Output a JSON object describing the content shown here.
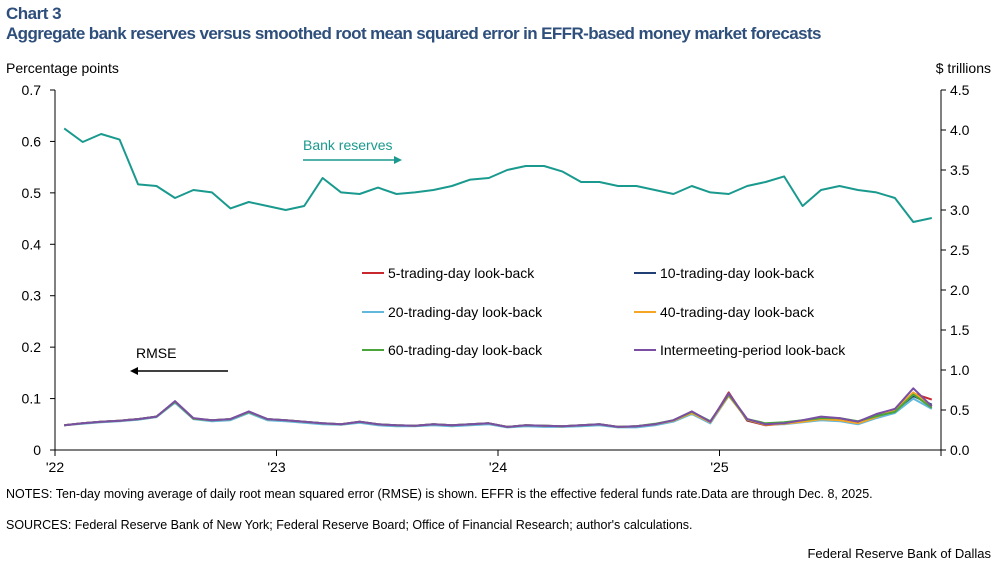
{
  "header": {
    "kicker": "Chart 3",
    "title": "Aggregate bank reserves versus smoothed root mean squared error in EFFR-based money market forecasts"
  },
  "notes": "NOTES: Ten-day moving average of daily root mean squared error (RMSE) is shown. EFFR is the effective federal funds rate.Data are through Dec. 8, 2025.",
  "sources": "SOURCES: Federal Reserve Bank of New York; Federal Reserve Board; Office of Financial Research; author's calculations.",
  "credit": "Federal Reserve Bank of Dallas",
  "chart_data": {
    "type": "line",
    "left_axis": {
      "label": "Percentage points",
      "ylim": [
        0,
        0.7
      ],
      "ticks": [
        "0",
        "0.1",
        "0.2",
        "0.3",
        "0.4",
        "0.5",
        "0.6",
        "0.7"
      ]
    },
    "right_axis": {
      "label": "$ trillions",
      "ylim": [
        0,
        4.5
      ],
      "ticks": [
        "0.0",
        "0.5",
        "1.0",
        "1.5",
        "2.0",
        "2.5",
        "3.0",
        "3.5",
        "4.0",
        "4.5"
      ]
    },
    "x_ticks": [
      "'22",
      "'23",
      "'24",
      "'25"
    ],
    "x_range": [
      "2022-01",
      "2026-01"
    ],
    "annotations": {
      "reserves": "Bank reserves",
      "rmse": "RMSE"
    },
    "months": [
      "2022-01",
      "2022-02",
      "2022-03",
      "2022-04",
      "2022-05",
      "2022-06",
      "2022-07",
      "2022-08",
      "2022-09",
      "2022-10",
      "2022-11",
      "2022-12",
      "2023-01",
      "2023-02",
      "2023-03",
      "2023-04",
      "2023-05",
      "2023-06",
      "2023-07",
      "2023-08",
      "2023-09",
      "2023-10",
      "2023-11",
      "2023-12",
      "2024-01",
      "2024-02",
      "2024-03",
      "2024-04",
      "2024-05",
      "2024-06",
      "2024-07",
      "2024-08",
      "2024-09",
      "2024-10",
      "2024-11",
      "2024-12",
      "2025-01",
      "2025-02",
      "2025-03",
      "2025-04",
      "2025-05",
      "2025-06",
      "2025-07",
      "2025-08",
      "2025-09",
      "2025-10",
      "2025-11",
      "2025-12"
    ],
    "reserves": {
      "name": "Bank reserves",
      "axis": "right",
      "color": "#1a9a8e",
      "values": [
        4.02,
        3.85,
        3.95,
        3.88,
        3.32,
        3.3,
        3.15,
        3.25,
        3.22,
        3.02,
        3.1,
        3.05,
        3.0,
        3.05,
        3.4,
        3.22,
        3.2,
        3.28,
        3.2,
        3.22,
        3.25,
        3.3,
        3.38,
        3.4,
        3.5,
        3.55,
        3.55,
        3.48,
        3.35,
        3.35,
        3.3,
        3.3,
        3.25,
        3.2,
        3.3,
        3.22,
        3.2,
        3.3,
        3.35,
        3.42,
        3.05,
        3.25,
        3.3,
        3.25,
        3.22,
        3.15,
        2.85,
        2.9
      ]
    },
    "series": [
      {
        "name": "5-trading-day look-back",
        "color": "#c8282d",
        "values": [
          0.048,
          0.052,
          0.055,
          0.057,
          0.06,
          0.065,
          0.093,
          0.061,
          0.057,
          0.059,
          0.073,
          0.059,
          0.057,
          0.054,
          0.051,
          0.05,
          0.054,
          0.049,
          0.047,
          0.047,
          0.049,
          0.047,
          0.049,
          0.051,
          0.045,
          0.047,
          0.046,
          0.046,
          0.047,
          0.049,
          0.045,
          0.045,
          0.049,
          0.056,
          0.073,
          0.053,
          0.112,
          0.057,
          0.048,
          0.051,
          0.055,
          0.06,
          0.058,
          0.052,
          0.065,
          0.075,
          0.11,
          0.098
        ]
      },
      {
        "name": "10-trading-day look-back",
        "color": "#1f3f75",
        "values": [
          0.048,
          0.052,
          0.055,
          0.057,
          0.06,
          0.065,
          0.094,
          0.061,
          0.058,
          0.06,
          0.074,
          0.06,
          0.058,
          0.055,
          0.052,
          0.05,
          0.055,
          0.05,
          0.048,
          0.047,
          0.05,
          0.048,
          0.05,
          0.052,
          0.045,
          0.048,
          0.047,
          0.046,
          0.048,
          0.05,
          0.045,
          0.046,
          0.05,
          0.057,
          0.074,
          0.054,
          0.108,
          0.058,
          0.049,
          0.052,
          0.056,
          0.062,
          0.06,
          0.053,
          0.066,
          0.076,
          0.105,
          0.088
        ]
      },
      {
        "name": "20-trading-day look-back",
        "color": "#62b8dc",
        "values": [
          0.048,
          0.051,
          0.054,
          0.056,
          0.059,
          0.064,
          0.092,
          0.06,
          0.056,
          0.058,
          0.072,
          0.058,
          0.056,
          0.053,
          0.05,
          0.049,
          0.053,
          0.048,
          0.046,
          0.046,
          0.048,
          0.046,
          0.048,
          0.05,
          0.044,
          0.046,
          0.045,
          0.045,
          0.046,
          0.048,
          0.044,
          0.044,
          0.048,
          0.055,
          0.07,
          0.052,
          0.105,
          0.06,
          0.05,
          0.05,
          0.054,
          0.058,
          0.056,
          0.05,
          0.062,
          0.072,
          0.1,
          0.08
        ]
      },
      {
        "name": "40-trading-day look-back",
        "color": "#f5a623",
        "values": [
          0.048,
          0.052,
          0.055,
          0.057,
          0.06,
          0.065,
          0.094,
          0.061,
          0.058,
          0.06,
          0.074,
          0.06,
          0.058,
          0.055,
          0.052,
          0.05,
          0.055,
          0.05,
          0.048,
          0.047,
          0.05,
          0.048,
          0.05,
          0.052,
          0.045,
          0.048,
          0.047,
          0.046,
          0.048,
          0.05,
          0.045,
          0.046,
          0.05,
          0.057,
          0.072,
          0.054,
          0.106,
          0.059,
          0.049,
          0.051,
          0.055,
          0.06,
          0.058,
          0.052,
          0.064,
          0.078,
          0.112,
          0.085
        ]
      },
      {
        "name": "60-trading-day look-back",
        "color": "#4aa53a",
        "values": [
          0.048,
          0.052,
          0.055,
          0.057,
          0.06,
          0.065,
          0.094,
          0.061,
          0.058,
          0.06,
          0.074,
          0.06,
          0.058,
          0.055,
          0.052,
          0.05,
          0.055,
          0.05,
          0.048,
          0.047,
          0.05,
          0.048,
          0.05,
          0.052,
          0.045,
          0.048,
          0.047,
          0.046,
          0.048,
          0.05,
          0.045,
          0.046,
          0.051,
          0.058,
          0.074,
          0.056,
          0.108,
          0.06,
          0.052,
          0.054,
          0.058,
          0.062,
          0.062,
          0.056,
          0.066,
          0.074,
          0.108,
          0.082
        ]
      },
      {
        "name": "Intermeeting-period look-back",
        "color": "#7a4fa3",
        "values": [
          0.048,
          0.052,
          0.055,
          0.057,
          0.06,
          0.065,
          0.095,
          0.062,
          0.058,
          0.06,
          0.075,
          0.06,
          0.058,
          0.055,
          0.052,
          0.05,
          0.055,
          0.05,
          0.048,
          0.047,
          0.05,
          0.048,
          0.05,
          0.052,
          0.045,
          0.048,
          0.047,
          0.046,
          0.048,
          0.05,
          0.045,
          0.046,
          0.05,
          0.058,
          0.075,
          0.055,
          0.11,
          0.06,
          0.05,
          0.052,
          0.058,
          0.065,
          0.062,
          0.055,
          0.07,
          0.08,
          0.12,
          0.085
        ]
      }
    ],
    "legend": "center-right, two columns",
    "grid": false
  }
}
